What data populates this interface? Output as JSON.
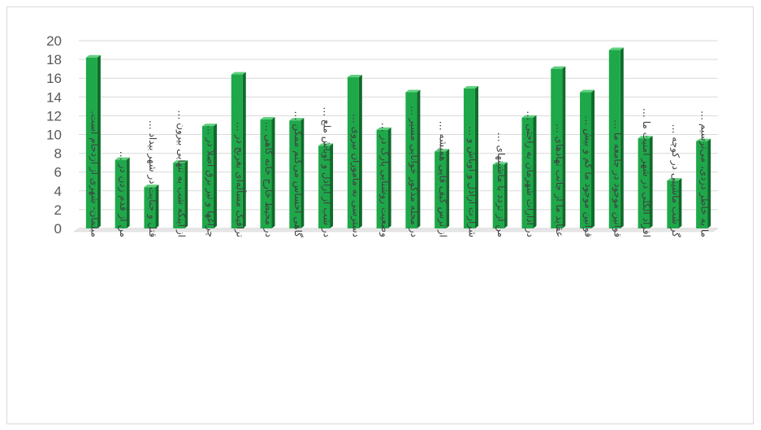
{
  "chart_data": {
    "type": "bar",
    "title": "",
    "xlabel": "",
    "ylabel": "",
    "ylim": [
      0,
      20
    ],
    "yticks": [
      0,
      2,
      4,
      6,
      8,
      10,
      12,
      14,
      16,
      18,
      20
    ],
    "grid": true,
    "legend": "none",
    "bar_color": "#1ea84a",
    "bar_side_color": "#0f6b2a",
    "bar_top_color": "#5fd07f",
    "categories": [
      "مبلمان- شهری از ازدحام است.",
      "من از قدم زدن در …",
      "قتل و جنایت در شهر بیداد …",
      "از اینکه شب به تنهایی بیرون …",
      "چراغها و تیر برق اصلاً در …",
      "ترافیک مسأله‌ای بغرنج در …",
      "در محیط خارج خانه گاهی …",
      "گاهی احساس می‌کنم ممکن …",
      "در شب از اراذل و اوباش ملع …",
      "دسترسی به ماموران نیروی …",
      "وضعیت روشنایی پارک در …",
      "در محله مذکور خوانایی مسیر …",
      "از ترس کیف قاپی همیشه …",
      "شرارت اراذل و اوباش و …",
      "من از تردد با ماشینهای …",
      "در ادارات شهرمان به راحتی …",
      "عقاید ما از جانب نهادهای …",
      "قوانین موجود ما کم و بیش …",
      "قوانین موجود در جامعه ما …",
      "افراد الکلی در شهر امنیت ما …",
      "گر شب ماشینی در کوچه …",
      "ما به خاطر دزدی، می‌ترسیم …"
    ],
    "values": [
      18.2,
      7.3,
      4.4,
      7.0,
      10.9,
      16.4,
      11.6,
      11.5,
      8.8,
      16.1,
      10.5,
      14.5,
      8.2,
      14.9,
      6.8,
      11.8,
      17.0,
      14.5,
      19.0,
      9.6,
      5.1,
      9.3
    ]
  }
}
